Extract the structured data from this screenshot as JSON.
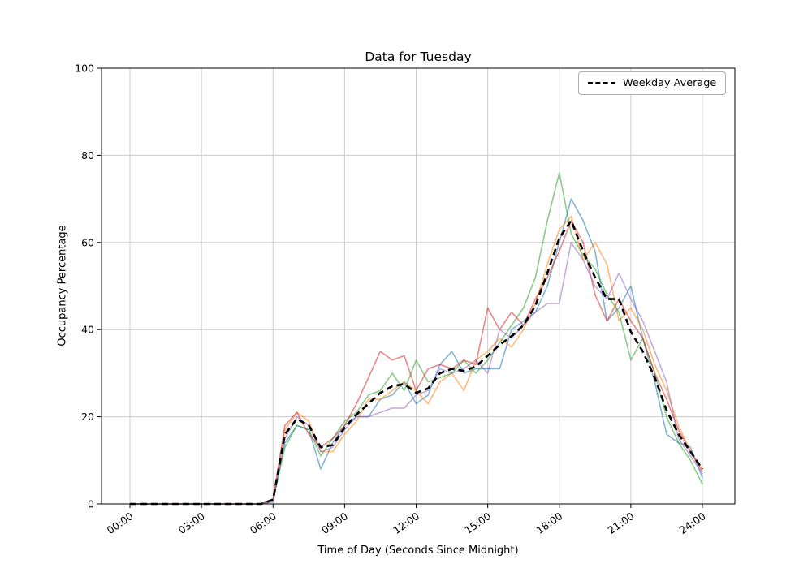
{
  "figure": {
    "title": "Data for Tuesday",
    "xlabel": "Time of Day (Seconds Since Midnight)",
    "ylabel": "Occupancy Percentage",
    "legend": {
      "items": [
        {
          "label": "Weekday Average",
          "style": "dashed-black"
        }
      ]
    }
  },
  "chart_data": {
    "type": "line",
    "title": "Data for Tuesday",
    "xlabel": "Time of Day (Seconds Since Midnight)",
    "ylabel": "Occupancy Percentage",
    "ylim": [
      0,
      100
    ],
    "xlim_hours": [
      0,
      24
    ],
    "grid": true,
    "legend_position": "upper right",
    "grid_color": "#cccccc",
    "x_ticks": [
      {
        "hour": 0,
        "label": "00:00"
      },
      {
        "hour": 3,
        "label": "03:00"
      },
      {
        "hour": 6,
        "label": "06:00"
      },
      {
        "hour": 9,
        "label": "09:00"
      },
      {
        "hour": 12,
        "label": "12:00"
      },
      {
        "hour": 15,
        "label": "15:00"
      },
      {
        "hour": 18,
        "label": "18:00"
      },
      {
        "hour": 21,
        "label": "21:00"
      },
      {
        "hour": 24,
        "label": "24:00"
      }
    ],
    "y_ticks": [
      0,
      20,
      40,
      60,
      80,
      100
    ],
    "x_hours": [
      0,
      0.5,
      1,
      1.5,
      2,
      2.5,
      3,
      3.5,
      4,
      4.5,
      5,
      5.5,
      6,
      6.5,
      7,
      7.5,
      8,
      8.5,
      9,
      9.5,
      10,
      10.5,
      11,
      11.5,
      12,
      12.5,
      13,
      13.5,
      14,
      14.5,
      15,
      15.5,
      16,
      16.5,
      17,
      17.5,
      18,
      18.5,
      19,
      19.5,
      20,
      20.5,
      21,
      21.5,
      22,
      22.5,
      23,
      23.5,
      24
    ],
    "series": [
      {
        "name": "series-1",
        "color": "#1f77b4",
        "opacity": 0.55,
        "values": [
          0,
          0,
          0,
          0,
          0,
          0,
          0,
          0,
          0,
          0,
          0,
          0,
          0.5,
          14,
          18,
          17,
          8,
          14,
          18,
          20,
          20,
          24,
          25,
          28,
          23,
          25,
          32,
          35,
          30,
          31,
          31,
          31,
          40,
          42,
          44,
          50,
          60,
          70,
          65,
          58,
          42,
          45,
          50,
          38,
          28,
          16,
          14,
          13,
          6
        ]
      },
      {
        "name": "series-2",
        "color": "#ff7f0e",
        "opacity": 0.55,
        "values": [
          0,
          0,
          0,
          0,
          0,
          0,
          0,
          0,
          0,
          0,
          0,
          0,
          1,
          17,
          21,
          19,
          12,
          12,
          16,
          19,
          24,
          24,
          26,
          28,
          26,
          23,
          28,
          30,
          26,
          33,
          35,
          38,
          36,
          40,
          46,
          55,
          63,
          66,
          56,
          60,
          55,
          42,
          45,
          40,
          32,
          26,
          18,
          12,
          8
        ]
      },
      {
        "name": "series-3",
        "color": "#2ca02c",
        "opacity": 0.55,
        "values": [
          0,
          0,
          0,
          0,
          0,
          0,
          0,
          0,
          0,
          0,
          0,
          0,
          1,
          13,
          18,
          17,
          11,
          15,
          19,
          21,
          25,
          26,
          30,
          26,
          33,
          28,
          29,
          30,
          33,
          30,
          33,
          37,
          41,
          45,
          52,
          65,
          76,
          62,
          57,
          54,
          48,
          44,
          33,
          38,
          30,
          20,
          14,
          10,
          4.5
        ]
      },
      {
        "name": "series-4",
        "color": "#d62728",
        "opacity": 0.55,
        "values": [
          0,
          0,
          0,
          0,
          0,
          0,
          0,
          0,
          0,
          0,
          0,
          0,
          1,
          18,
          21,
          16,
          13,
          15,
          18,
          23,
          29,
          35,
          33,
          34,
          26,
          31,
          32,
          31,
          33,
          32,
          45,
          40,
          44,
          41,
          47,
          52,
          58,
          65,
          60,
          48,
          42,
          47,
          42,
          38,
          30,
          24,
          17,
          12,
          7.5
        ]
      },
      {
        "name": "series-5",
        "color": "#9467bd",
        "opacity": 0.55,
        "values": [
          0,
          0,
          0,
          0,
          0,
          0,
          0,
          0,
          0,
          0,
          0,
          0,
          0.5,
          15,
          20,
          18,
          12,
          13,
          17,
          20,
          20,
          21,
          22,
          22,
          25,
          26,
          31,
          30,
          31,
          33,
          30,
          40,
          38,
          41,
          44,
          46,
          46,
          60,
          56,
          50,
          47,
          53,
          47,
          42,
          35,
          28,
          15,
          11,
          7
        ]
      }
    ],
    "average": {
      "name": "Weekday Average",
      "color": "#000000",
      "dash": true,
      "values": [
        0,
        0,
        0,
        0,
        0,
        0,
        0,
        0,
        0,
        0,
        0,
        0,
        1,
        16,
        19.5,
        18,
        13,
        13.5,
        17.5,
        20.5,
        23,
        25.5,
        27,
        27.5,
        25.5,
        26.5,
        30,
        31,
        30.5,
        31.5,
        34,
        36.5,
        38.5,
        41,
        45.5,
        53,
        61,
        65,
        58,
        52,
        47,
        47,
        39.5,
        35,
        29,
        21.5,
        16,
        12,
        8
      ]
    }
  }
}
